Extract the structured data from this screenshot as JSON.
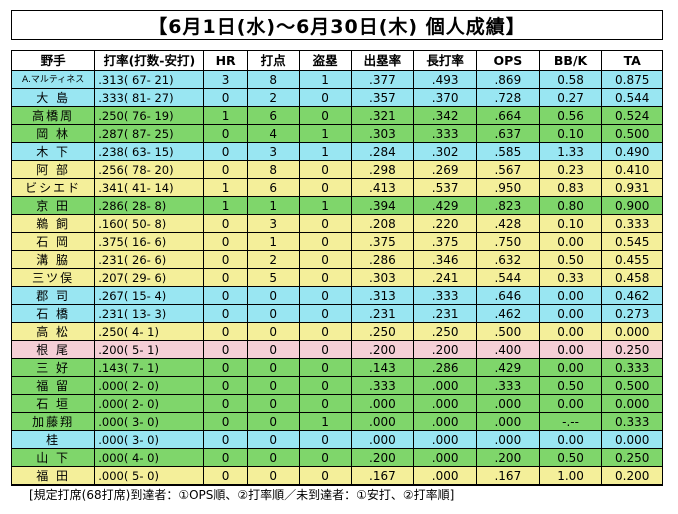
{
  "title": "【6月1日(水)～6月30日(木) 個人成績】",
  "headers": [
    "野手",
    "打率(打数-安打)",
    "HR",
    "打点",
    "盗塁",
    "出塁率",
    "長打率",
    "OPS",
    "BB/K",
    "TA"
  ],
  "rows": [
    {
      "name": "A.マルティネス",
      "avg": ".313( 67- 21)",
      "hr": "3",
      "rbi": "8",
      "sb": "1",
      "obp": ".377",
      "slg": ".493",
      "ops": ".869",
      "bbk": "0.58",
      "ta": "0.875",
      "color": "c1",
      "small": true
    },
    {
      "name": "大 島",
      "avg": ".333( 81- 27)",
      "hr": "0",
      "rbi": "2",
      "sb": "0",
      "obp": ".357",
      "slg": ".370",
      "ops": ".728",
      "bbk": "0.27",
      "ta": "0.544",
      "color": "c1"
    },
    {
      "name": "高橋周",
      "avg": ".250( 76- 19)",
      "hr": "1",
      "rbi": "6",
      "sb": "0",
      "obp": ".321",
      "slg": ".342",
      "ops": ".664",
      "bbk": "0.56",
      "ta": "0.524",
      "color": "c2"
    },
    {
      "name": "岡 林",
      "avg": ".287( 87- 25)",
      "hr": "0",
      "rbi": "4",
      "sb": "1",
      "obp": ".303",
      "slg": ".333",
      "ops": ".637",
      "bbk": "0.10",
      "ta": "0.500",
      "color": "c2"
    },
    {
      "name": "木 下",
      "avg": ".238( 63- 15)",
      "hr": "0",
      "rbi": "3",
      "sb": "1",
      "obp": ".284",
      "slg": ".302",
      "ops": ".585",
      "bbk": "1.33",
      "ta": "0.490",
      "color": "c1"
    },
    {
      "name": "阿 部",
      "avg": ".256( 78- 20)",
      "hr": "0",
      "rbi": "8",
      "sb": "0",
      "obp": ".298",
      "slg": ".269",
      "ops": ".567",
      "bbk": "0.23",
      "ta": "0.410",
      "color": "c3"
    },
    {
      "name": "ビシエド",
      "avg": ".341( 41- 14)",
      "hr": "1",
      "rbi": "6",
      "sb": "0",
      "obp": ".413",
      "slg": ".537",
      "ops": ".950",
      "bbk": "0.83",
      "ta": "0.931",
      "color": "c3"
    },
    {
      "name": "京 田",
      "avg": ".286( 28- 8)",
      "hr": "1",
      "rbi": "1",
      "sb": "1",
      "obp": ".394",
      "slg": ".429",
      "ops": ".823",
      "bbk": "0.80",
      "ta": "0.900",
      "color": "c2"
    },
    {
      "name": "鵜 飼",
      "avg": ".160( 50- 8)",
      "hr": "0",
      "rbi": "3",
      "sb": "0",
      "obp": ".208",
      "slg": ".220",
      "ops": ".428",
      "bbk": "0.10",
      "ta": "0.333",
      "color": "c3"
    },
    {
      "name": "石 岡",
      "avg": ".375( 16- 6)",
      "hr": "0",
      "rbi": "1",
      "sb": "0",
      "obp": ".375",
      "slg": ".375",
      "ops": ".750",
      "bbk": "0.00",
      "ta": "0.545",
      "color": "c3"
    },
    {
      "name": "溝 脇",
      "avg": ".231( 26- 6)",
      "hr": "0",
      "rbi": "2",
      "sb": "0",
      "obp": ".286",
      "slg": ".346",
      "ops": ".632",
      "bbk": "0.50",
      "ta": "0.455",
      "color": "c3"
    },
    {
      "name": "三ツ俣",
      "avg": ".207( 29- 6)",
      "hr": "0",
      "rbi": "5",
      "sb": "0",
      "obp": ".303",
      "slg": ".241",
      "ops": ".544",
      "bbk": "0.33",
      "ta": "0.458",
      "color": "c3"
    },
    {
      "name": "郡 司",
      "avg": ".267( 15- 4)",
      "hr": "0",
      "rbi": "0",
      "sb": "0",
      "obp": ".313",
      "slg": ".333",
      "ops": ".646",
      "bbk": "0.00",
      "ta": "0.462",
      "color": "c1"
    },
    {
      "name": "石 橋",
      "avg": ".231( 13- 3)",
      "hr": "0",
      "rbi": "0",
      "sb": "0",
      "obp": ".231",
      "slg": ".231",
      "ops": ".462",
      "bbk": "0.00",
      "ta": "0.273",
      "color": "c1"
    },
    {
      "name": "高 松",
      "avg": ".250( 4- 1)",
      "hr": "0",
      "rbi": "0",
      "sb": "0",
      "obp": ".250",
      "slg": ".250",
      "ops": ".500",
      "bbk": "0.00",
      "ta": "0.000",
      "color": "c3"
    },
    {
      "name": "根 尾",
      "avg": ".200( 5- 1)",
      "hr": "0",
      "rbi": "0",
      "sb": "0",
      "obp": ".200",
      "slg": ".200",
      "ops": ".400",
      "bbk": "0.00",
      "ta": "0.250",
      "color": "c4"
    },
    {
      "name": "三 好",
      "avg": ".143( 7- 1)",
      "hr": "0",
      "rbi": "0",
      "sb": "0",
      "obp": ".143",
      "slg": ".286",
      "ops": ".429",
      "bbk": "0.00",
      "ta": "0.333",
      "color": "c2"
    },
    {
      "name": "福 留",
      "avg": ".000( 2- 0)",
      "hr": "0",
      "rbi": "0",
      "sb": "0",
      "obp": ".333",
      "slg": ".000",
      "ops": ".333",
      "bbk": "0.50",
      "ta": "0.500",
      "color": "c2"
    },
    {
      "name": "石 垣",
      "avg": ".000( 2- 0)",
      "hr": "0",
      "rbi": "0",
      "sb": "0",
      "obp": ".000",
      "slg": ".000",
      "ops": ".000",
      "bbk": "0.00",
      "ta": "0.000",
      "color": "c2"
    },
    {
      "name": "加藤翔",
      "avg": ".000( 3- 0)",
      "hr": "0",
      "rbi": "0",
      "sb": "1",
      "obp": ".000",
      "slg": ".000",
      "ops": ".000",
      "bbk": "-.--",
      "ta": "0.333",
      "color": "c2"
    },
    {
      "name": "桂",
      "avg": ".000( 3- 0)",
      "hr": "0",
      "rbi": "0",
      "sb": "0",
      "obp": ".000",
      "slg": ".000",
      "ops": ".000",
      "bbk": "0.00",
      "ta": "0.000",
      "color": "c1"
    },
    {
      "name": "山 下",
      "avg": ".000( 4- 0)",
      "hr": "0",
      "rbi": "0",
      "sb": "0",
      "obp": ".200",
      "slg": ".000",
      "ops": ".200",
      "bbk": "0.50",
      "ta": "0.250",
      "color": "c2"
    },
    {
      "name": "福 田",
      "avg": ".000( 5- 0)",
      "hr": "0",
      "rbi": "0",
      "sb": "0",
      "obp": ".167",
      "slg": ".000",
      "ops": ".167",
      "bbk": "1.00",
      "ta": "0.200",
      "color": "c3"
    }
  ],
  "note": "[規定打席(68打席)到達者：①OPS順、②打率順／未到達者：①安打、②打率順]"
}
